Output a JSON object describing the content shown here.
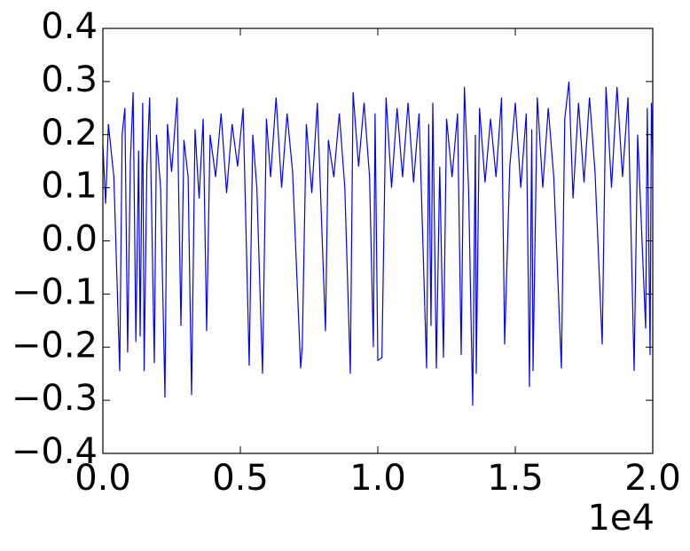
{
  "chart_data": {
    "type": "line",
    "color": "#0000ff",
    "x": [
      0,
      100,
      200,
      400,
      613,
      700,
      800,
      900,
      1000,
      1100,
      1200,
      1300,
      1355,
      1450,
      1500,
      1600,
      1700,
      1871,
      1950,
      2100,
      2258,
      2350,
      2500,
      2700,
      2839,
      2950,
      3100,
      3226,
      3350,
      3500,
      3650,
      3774,
      3900,
      4100,
      4300,
      4500,
      4700,
      4900,
      5100,
      5323,
      5450,
      5600,
      5806,
      5950,
      6100,
      6300,
      6500,
      6700,
      6900,
      7194,
      7250,
      7400,
      7600,
      7800,
      8097,
      8200,
      8400,
      8600,
      8800,
      9000,
      9100,
      9300,
      9500,
      9700,
      9839,
      9900,
      10000,
      10150,
      10300,
      10500,
      10700,
      10900,
      11100,
      11300,
      11500,
      11774,
      11850,
      11935,
      12000,
      12129,
      12250,
      12387,
      12500,
      12700,
      12900,
      13032,
      13150,
      13300,
      13452,
      13550,
      13581,
      13700,
      13900,
      14100,
      14300,
      14500,
      14613,
      14800,
      15000,
      15200,
      15400,
      15516,
      15600,
      15645,
      15800,
      16000,
      16200,
      16400,
      16677,
      16800,
      16950,
      17100,
      17300,
      17500,
      17700,
      17900,
      18161,
      18300,
      18500,
      18700,
      18900,
      19100,
      19323,
      19450,
      19742,
      19800,
      19903,
      19950,
      20000
    ],
    "values": [
      0.18,
      0.07,
      0.22,
      0.12,
      -0.245,
      0.2,
      0.25,
      -0.21,
      0.15,
      0.28,
      -0.19,
      0.17,
      -0.18,
      0.26,
      -0.245,
      0.14,
      0.27,
      -0.23,
      0.2,
      0.1,
      -0.295,
      0.22,
      0.13,
      0.27,
      -0.16,
      0.19,
      0.12,
      -0.29,
      0.21,
      0.08,
      0.23,
      -0.17,
      0.2,
      0.12,
      0.24,
      0.09,
      0.22,
      0.14,
      0.25,
      -0.235,
      0.2,
      0.1,
      -0.25,
      0.23,
      0.12,
      0.27,
      0.1,
      0.24,
      0.13,
      -0.24,
      -0.2,
      0.22,
      0.09,
      0.26,
      -0.17,
      0.19,
      0.12,
      0.24,
      0.1,
      -0.25,
      0.28,
      0.14,
      0.26,
      0.12,
      -0.2,
      0.24,
      -0.225,
      -0.22,
      0.27,
      0.1,
      0.25,
      0.12,
      0.26,
      0.11,
      0.24,
      -0.24,
      0.22,
      -0.16,
      0.26,
      -0.24,
      0.14,
      -0.22,
      0.23,
      0.12,
      0.24,
      -0.215,
      0.29,
      0.1,
      -0.31,
      0.2,
      -0.25,
      0.25,
      0.11,
      0.23,
      0.12,
      0.27,
      -0.195,
      0.14,
      0.26,
      0.1,
      0.24,
      -0.275,
      0.21,
      -0.245,
      0.27,
      0.1,
      0.25,
      0.12,
      -0.24,
      0.23,
      0.3,
      0.08,
      0.26,
      0.11,
      0.27,
      0.13,
      -0.195,
      0.29,
      0.1,
      0.29,
      0.12,
      0.27,
      -0.245,
      0.2,
      -0.165,
      0.25,
      -0.215,
      0.26,
      0.16
    ],
    "xlim": [
      0,
      20000
    ],
    "xticks": [
      {
        "value": 0,
        "label": "0.0"
      },
      {
        "value": 5000,
        "label": "0.5"
      },
      {
        "value": 10000,
        "label": "1.0"
      },
      {
        "value": 15000,
        "label": "1.5"
      },
      {
        "value": 20000,
        "label": "2.0"
      }
    ],
    "x_offset_label": "1e4",
    "ylim": [
      -0.4,
      0.4
    ],
    "yticks": [
      {
        "value": -0.4,
        "label": "−0.4"
      },
      {
        "value": -0.3,
        "label": "−0.3"
      },
      {
        "value": -0.2,
        "label": "−0.2"
      },
      {
        "value": -0.1,
        "label": "−0.1"
      },
      {
        "value": 0,
        "label": "0.0"
      },
      0.1,
      0.2,
      0.3,
      0.4
    ],
    "grid": false
  }
}
